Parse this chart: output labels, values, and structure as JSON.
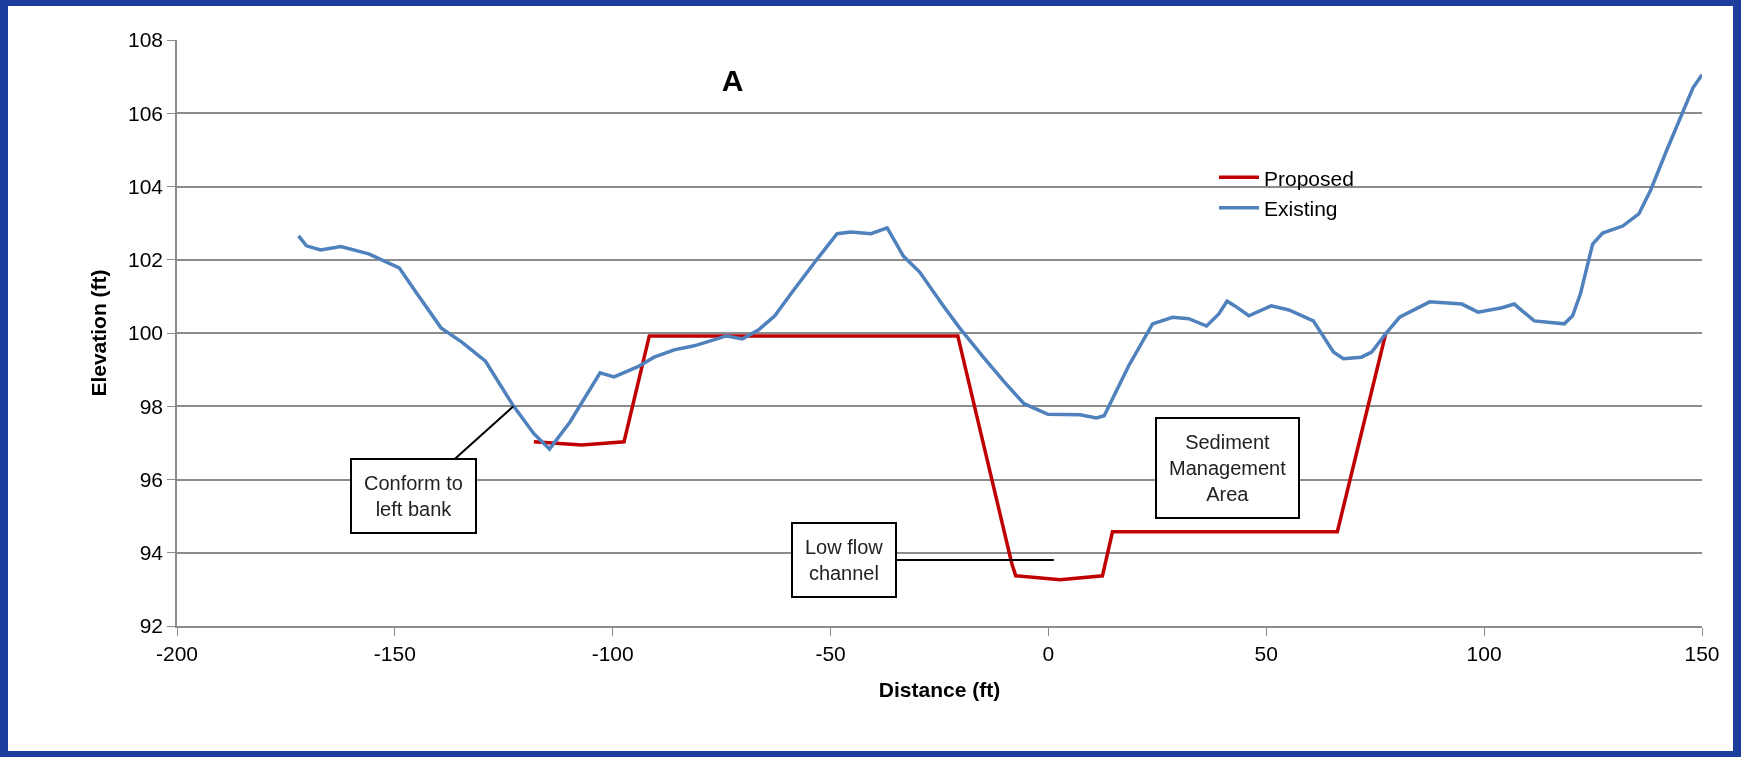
{
  "chart_data": {
    "type": "line",
    "title": "A",
    "xlabel": "Distance (ft)",
    "ylabel": "Elevation (ft)",
    "xlim": [
      -200,
      150
    ],
    "xticks": [
      -200,
      -150,
      -100,
      -50,
      0,
      50,
      100,
      150
    ],
    "ylim": [
      92,
      108
    ],
    "yticks": [
      92,
      94,
      96,
      98,
      100,
      102,
      104,
      106,
      108
    ],
    "grid": "y",
    "legend": "top right",
    "marker": "none",
    "line_style": "solid",
    "series": [
      {
        "name": "Proposed",
        "color": "#c00000",
        "x": [
          -118.1,
          -107.1,
          -97.4,
          -91.6,
          -20.8,
          -8.4,
          -7.5,
          2.7,
          12.4,
          14.7,
          66.3,
          77.4
        ],
        "values": [
          97.03,
          96.94,
          97.03,
          99.92,
          99.92,
          93.7,
          93.37,
          93.26,
          93.37,
          94.57,
          94.57,
          99.98
        ]
      },
      {
        "name": "Existing",
        "color": "#4f81bd",
        "x": [
          -172.1,
          -170.3,
          -167.0,
          -162.4,
          -156.0,
          -149.0,
          -144.9,
          -139.4,
          -134.7,
          -129.2,
          -122.8,
          -118.1,
          -114.5,
          -109.8,
          -102.9,
          -99.7,
          -94.2,
          -90.5,
          -85.9,
          -81.3,
          -73.9,
          -70.2,
          -66.5,
          -62.8,
          -59.1,
          -53.6,
          -48.5,
          -45.3,
          -40.7,
          -37.0,
          -33.3,
          -29.6,
          -24.1,
          -20.4,
          -14.8,
          -10.2,
          -5.6,
          -0.1,
          7.3,
          11.0,
          12.8,
          18.4,
          23.9,
          28.5,
          32.2,
          36.3,
          39.1,
          41.0,
          42.8,
          46.0,
          51.1,
          55.2,
          60.8,
          65.4,
          67.7,
          71.8,
          74.2,
          77.4,
          80.6,
          87.5,
          94.9,
          98.6,
          104.1,
          106.9,
          111.5,
          118.4,
          120.3,
          122.1,
          124.9,
          127.2,
          131.8,
          135.5,
          138.2,
          141.9,
          147.9,
          150.0
        ],
        "values": [
          102.65,
          102.38,
          102.27,
          102.36,
          102.16,
          101.78,
          101.07,
          100.14,
          99.76,
          99.23,
          98.01,
          97.25,
          96.83,
          97.57,
          98.91,
          98.8,
          99.08,
          99.34,
          99.54,
          99.65,
          99.92,
          99.84,
          100.09,
          100.47,
          101.07,
          101.94,
          102.71,
          102.76,
          102.71,
          102.87,
          102.1,
          101.67,
          100.74,
          100.14,
          99.32,
          98.67,
          98.07,
          97.78,
          97.77,
          97.68,
          97.74,
          99.1,
          100.25,
          100.43,
          100.39,
          100.19,
          100.52,
          100.87,
          100.74,
          100.47,
          100.74,
          100.63,
          100.33,
          99.48,
          99.3,
          99.34,
          99.48,
          99.98,
          100.43,
          100.85,
          100.79,
          100.57,
          100.69,
          100.79,
          100.33,
          100.25,
          100.47,
          101.07,
          102.43,
          102.73,
          102.92,
          103.25,
          103.9,
          104.99,
          106.69,
          107.05
        ]
      }
    ],
    "annotations": [
      {
        "text": "Conform to\nleft bank",
        "x": -122.8,
        "y": 98.0
      },
      "Low flow\nchannel",
      "Sediment\nManagement\nArea"
    ]
  }
}
